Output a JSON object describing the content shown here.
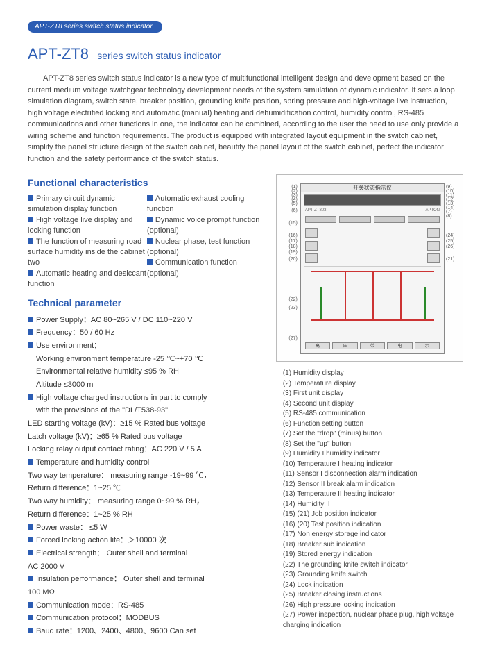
{
  "tab": "APT-ZT8 series switch status indicator",
  "title_main": "APT-ZT8",
  "title_sub": "series switch status indicator",
  "intro": "APT-ZT8 series switch status indicator is a new type of multifunctional intelligent design and development based on the current medium voltage switchgear technology development needs of the system simulation of dynamic indicator.  It sets a loop simulation diagram, switch state, breaker position, grounding knife position, spring pressure and high-voltage live instruction, high voltage electrified locking and automatic (manual) heating and dehumidification control, humidity control, RS-485 communications and other functions in one, the indicator can be combined, according to the user the need to use only provide a wiring scheme and function requirements.  The product is equipped with integrated layout equipment in the switch cabinet, simplify the panel structure design of the switch cabinet, beautify the panel layout of the switch cabinet, perfect the indicator function and the safety performance of the switch status.",
  "sec_functional": "Functional characteristics",
  "features_left": [
    "Primary circuit dynamic simulation display function",
    "High voltage live display and locking function",
    "The function of measuring road surface humidity inside the cabinet two",
    "Automatic heating and desiccant function"
  ],
  "features_right": [
    "Automatic exhaust cooling function",
    "Dynamic voice prompt function (optional)",
    "Nuclear phase, test function (optional)",
    "Communication function (optional)"
  ],
  "sec_technical": "Technical parameter",
  "params": [
    {
      "b": true,
      "t": "Power Supply：AC 80~265 V / DC 110~220 V"
    },
    {
      "b": true,
      "t": "Frequency：50 / 60 Hz"
    },
    {
      "b": true,
      "t": "Use environment："
    },
    {
      "b": false,
      "t": "Working environment temperature   -25 ℃~+70 ℃",
      "i": true
    },
    {
      "b": false,
      "t": "Environmental relative humidity   ≤95 % RH",
      "i": true
    },
    {
      "b": false,
      "t": "Altitude   ≤3000 m",
      "i": true
    },
    {
      "b": true,
      "t": "High voltage charged instructions in part to comply"
    },
    {
      "b": false,
      "t": "with the provisions of the \"DL/T538-93\"",
      "i": true
    },
    {
      "b": false,
      "t": "LED starting voltage (kV)：≥15 %  Rated bus voltage"
    },
    {
      "b": false,
      "t": "Latch voltage (kV)：≥65 %  Rated bus voltage"
    },
    {
      "b": false,
      "t": "Locking relay output contact rating：AC 220 V / 5 A"
    },
    {
      "b": true,
      "t": "Temperature and humidity control"
    },
    {
      "b": false,
      "t": "Two way temperature： measuring range -19~99 ℃，"
    },
    {
      "b": false,
      "t": "Return difference：1~25 ℃"
    },
    {
      "b": false,
      "t": "Two way humidity： measuring range   0~99 % RH，"
    },
    {
      "b": false,
      "t": "Return difference：1~25 % RH"
    },
    {
      "b": true,
      "t": "Power waste：  ≤5 W"
    },
    {
      "b": true,
      "t": "Forced locking action life：＞10000 次"
    },
    {
      "b": true,
      "t": "Electrical strength： Outer shell and terminal"
    },
    {
      "b": false,
      "t": "AC 2000 V"
    },
    {
      "b": true,
      "t": "Insulation performance： Outer shell and terminal"
    },
    {
      "b": false,
      "t": "100 MΩ"
    },
    {
      "b": true,
      "t": "Communication mode：RS-485"
    },
    {
      "b": true,
      "t": "Communication protocol：MODBUS"
    },
    {
      "b": true,
      "t": "Baud rate：1200、2400、4800、9600  Can set"
    }
  ],
  "diagram": {
    "topbar": "开关状态指示仪",
    "model": "APT-ZT803",
    "brand": "APTON",
    "callouts_left": [
      "(1)",
      "(2)",
      "(3)",
      "(4)",
      "(5)",
      "(6)",
      "(15)",
      "(16)",
      "(17)",
      "(18)",
      "(19)",
      "(20)",
      "(22)",
      "(23)",
      "(27)"
    ],
    "callouts_right": [
      "(9)",
      "(10)",
      "(11)",
      "(12)",
      "(13)",
      "(14)",
      "(7)",
      "(8)",
      "(24)",
      "(25)",
      "(26)",
      "(21)"
    ],
    "line_color": "#c9302c",
    "gnd_color": "#2a8a2a",
    "panel_bg": "#f5f5f5",
    "lcd_bg": "#555"
  },
  "legend": [
    "(1) Humidity display",
    "(2) Temperature display",
    "(3) First unit display",
    "(4) Second unit display",
    "(5) RS-485  communication",
    "(6) Function setting button",
    "(7)  Set the \"drop\" (minus) button",
    "(8)  Set the \"up\" button",
    "(9)  Humidity I humidity indicator",
    "(10)  Temperature I heating indicator",
    "(11)  Sensor I disconnection alarm indication",
    "(12)  Sensor II break alarm indication",
    "(13)  Temperature II heating indicator",
    "(14)  Humidity II",
    "(15) (21)  Job position indicator",
    "(16) (20)  Test position indication",
    "(17)  Non energy storage indicator",
    "(18)  Breaker sub indication",
    "(19)  Stored energy indication",
    "(22)  The grounding knife switch indicator",
    "(23)  Grounding knife switch",
    "(24)  Lock indication",
    "(25)  Breaker closing instructions",
    "(26)  High pressure locking indication",
    "(27)  Power inspection, nuclear phase plug, high voltage charging indication"
  ]
}
